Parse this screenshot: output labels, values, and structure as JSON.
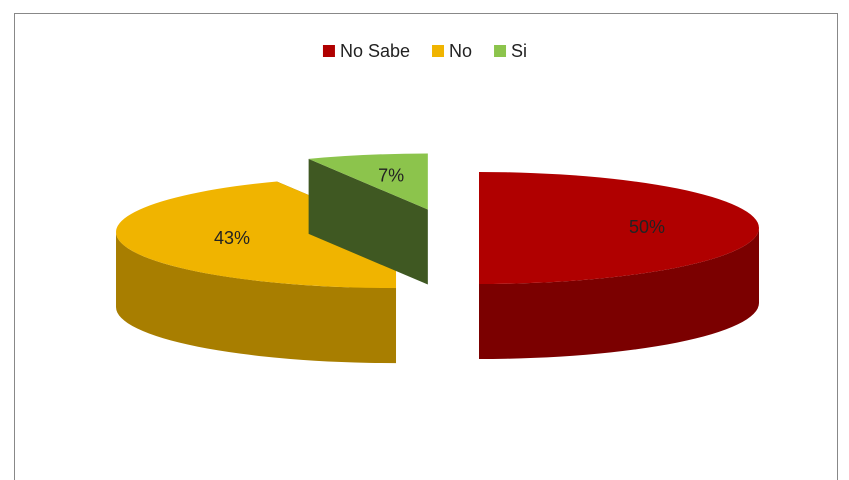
{
  "chart_data": {
    "type": "pie3d",
    "categories": [
      "No Sabe",
      "No",
      "Si"
    ],
    "values": [
      50,
      43,
      7
    ],
    "value_labels": [
      "50%",
      "43%",
      "7%"
    ],
    "colors": [
      "#b00000",
      "#f0b400",
      "#8cc44c"
    ],
    "legend": "top"
  }
}
